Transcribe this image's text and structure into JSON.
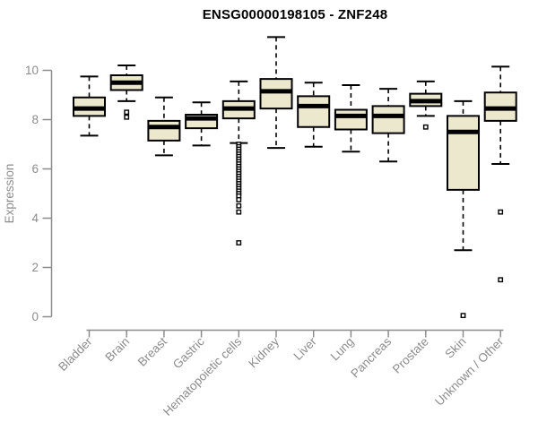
{
  "colors": {
    "background": "#ffffff",
    "box_fill": "#ece8cd",
    "box_border": "#000000",
    "median": "#000000",
    "axis": "#8c8c8c",
    "tick_label": "#8c8c8c",
    "title": "#000000"
  },
  "chart_data": {
    "type": "boxplot",
    "title": "ENSG00000198105 - ZNF248",
    "xlabel": "",
    "ylabel": "Expression",
    "ylim": [
      0,
      11.5
    ],
    "yticks": [
      0,
      2,
      4,
      6,
      8,
      10
    ],
    "grid": false,
    "legend": "none",
    "categories": [
      "Bladder",
      "Brain",
      "Breast",
      "Gastric",
      "Hematopoietic cells",
      "Kidney",
      "Liver",
      "Lung",
      "Pancreas",
      "Prostate",
      "Skin",
      "Unknown / Other"
    ],
    "boxes": [
      {
        "label": "Bladder",
        "whisker_low": 7.35,
        "q1": 8.15,
        "median": 8.45,
        "q3": 8.9,
        "whisker_high": 9.75,
        "outliers": []
      },
      {
        "label": "Brain",
        "whisker_low": 8.75,
        "q1": 9.2,
        "median": 9.5,
        "q3": 9.8,
        "whisker_high": 10.2,
        "outliers": [
          8.3,
          8.1
        ]
      },
      {
        "label": "Breast",
        "whisker_low": 6.55,
        "q1": 7.15,
        "median": 7.7,
        "q3": 7.95,
        "whisker_high": 8.9,
        "outliers": []
      },
      {
        "label": "Gastric",
        "whisker_low": 6.95,
        "q1": 7.65,
        "median": 8.05,
        "q3": 8.2,
        "whisker_high": 8.7,
        "outliers": []
      },
      {
        "label": "Hematopoietic cells",
        "whisker_low": 7.05,
        "q1": 8.05,
        "median": 8.45,
        "q3": 8.75,
        "whisker_high": 9.55,
        "outliers": [
          7.0,
          6.9,
          6.8,
          6.7,
          6.6,
          6.5,
          6.4,
          6.3,
          6.2,
          6.1,
          6.0,
          5.9,
          5.8,
          5.7,
          5.6,
          5.5,
          5.4,
          5.3,
          5.2,
          5.1,
          5.0,
          4.9,
          4.75,
          4.5,
          4.25,
          3.0
        ]
      },
      {
        "label": "Kidney",
        "whisker_low": 6.85,
        "q1": 8.45,
        "median": 9.15,
        "q3": 9.65,
        "whisker_high": 11.35,
        "outliers": []
      },
      {
        "label": "Liver",
        "whisker_low": 6.9,
        "q1": 7.7,
        "median": 8.55,
        "q3": 8.95,
        "whisker_high": 9.5,
        "outliers": []
      },
      {
        "label": "Lung",
        "whisker_low": 6.7,
        "q1": 7.6,
        "median": 8.15,
        "q3": 8.4,
        "whisker_high": 9.4,
        "outliers": []
      },
      {
        "label": "Pancreas",
        "whisker_low": 6.3,
        "q1": 7.45,
        "median": 8.15,
        "q3": 8.55,
        "whisker_high": 9.25,
        "outliers": []
      },
      {
        "label": "Prostate",
        "whisker_low": 8.15,
        "q1": 8.55,
        "median": 8.75,
        "q3": 9.05,
        "whisker_high": 9.55,
        "outliers": [
          7.7
        ]
      },
      {
        "label": "Skin",
        "whisker_low": 2.7,
        "q1": 5.15,
        "median": 7.5,
        "q3": 8.15,
        "whisker_high": 8.75,
        "outliers": [
          0.05
        ]
      },
      {
        "label": "Unknown / Other",
        "whisker_low": 6.2,
        "q1": 7.95,
        "median": 8.45,
        "q3": 9.1,
        "whisker_high": 10.15,
        "outliers": [
          4.25,
          1.5
        ]
      }
    ]
  }
}
